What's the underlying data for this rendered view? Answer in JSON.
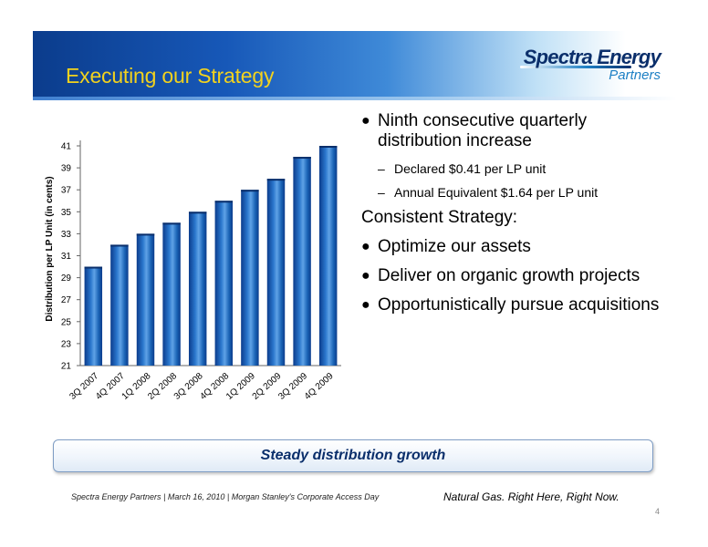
{
  "slide": {
    "title": "Executing our Strategy",
    "page_number": "4"
  },
  "logo": {
    "main": "Spectra Energy",
    "sub": "Partners"
  },
  "bullets": {
    "b1": "Ninth consecutive quarterly distribution increase",
    "b1_sub": [
      "Declared $0.41 per LP unit",
      "Annual Equivalent $1.64 per LP unit"
    ],
    "heading": "Consistent Strategy:",
    "items": [
      "Optimize our assets",
      "Deliver on organic growth projects",
      "Opportunistically pursue acquisitions"
    ]
  },
  "callout": "Steady distribution growth",
  "footer": {
    "left": "Spectra Energy Partners | March 16, 2010 | Morgan Stanley's Corporate Access Day",
    "right": "Natural Gas.  Right Here, Right Now."
  },
  "colors": {
    "title": "#f2d21e",
    "bar": "#1a63b5",
    "bar_dark": "#0b3c8c",
    "bar_light": "#5fa2e6"
  },
  "chart_data": {
    "type": "bar",
    "categories": [
      "3Q 2007",
      "4Q 2007",
      "1Q 2008",
      "2Q 2008",
      "3Q 2008",
      "4Q 2008",
      "1Q 2009",
      "2Q 2009",
      "3Q 2009",
      "4Q 2009"
    ],
    "values": [
      30,
      32,
      33,
      34,
      35,
      36,
      37,
      38,
      40,
      41
    ],
    "ylabel": "Distribution per LP Unit (in cents)",
    "ylim": [
      21,
      41
    ],
    "yticks": [
      21,
      23,
      25,
      27,
      29,
      31,
      33,
      35,
      37,
      39,
      41
    ],
    "grid": false,
    "legend": "none"
  }
}
